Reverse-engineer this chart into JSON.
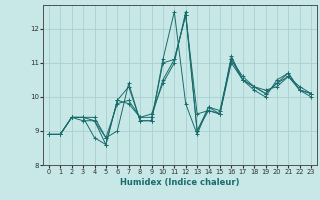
{
  "xlabel": "Humidex (Indice chaleur)",
  "ylabel": "",
  "background_color": "#c8e8e8",
  "grid_color": "#a8d0d0",
  "line_color": "#1a6b6b",
  "xlim": [
    -0.5,
    23.5
  ],
  "ylim": [
    8.0,
    12.7
  ],
  "yticks": [
    8,
    9,
    10,
    11,
    12
  ],
  "xticks": [
    0,
    1,
    2,
    3,
    4,
    5,
    6,
    7,
    8,
    9,
    10,
    11,
    12,
    13,
    14,
    15,
    16,
    17,
    18,
    19,
    20,
    21,
    22,
    23
  ],
  "series": [
    [
      8.9,
      8.9,
      9.4,
      9.4,
      9.4,
      8.8,
      9.0,
      10.4,
      9.3,
      9.3,
      11.1,
      12.5,
      9.8,
      8.9,
      9.7,
      9.5,
      11.1,
      10.5,
      10.3,
      10.1,
      10.4,
      10.6,
      10.3,
      10.1
    ],
    [
      8.9,
      8.9,
      9.4,
      9.4,
      8.8,
      8.6,
      9.9,
      10.3,
      9.3,
      9.3,
      11.0,
      11.1,
      12.4,
      9.5,
      9.6,
      9.5,
      11.2,
      10.5,
      10.2,
      10.0,
      10.5,
      10.7,
      10.2,
      10.1
    ],
    [
      8.9,
      8.9,
      9.4,
      9.4,
      9.3,
      8.8,
      9.8,
      9.9,
      9.4,
      9.4,
      10.5,
      11.1,
      12.4,
      9.0,
      9.7,
      9.6,
      11.1,
      10.6,
      10.3,
      10.2,
      10.3,
      10.6,
      10.2,
      10.0
    ],
    [
      8.9,
      8.9,
      9.4,
      9.3,
      9.3,
      8.6,
      9.9,
      9.8,
      9.4,
      9.5,
      10.4,
      11.0,
      12.5,
      9.0,
      9.6,
      9.5,
      11.0,
      10.5,
      10.3,
      10.1,
      10.4,
      10.7,
      10.2,
      10.1
    ]
  ]
}
